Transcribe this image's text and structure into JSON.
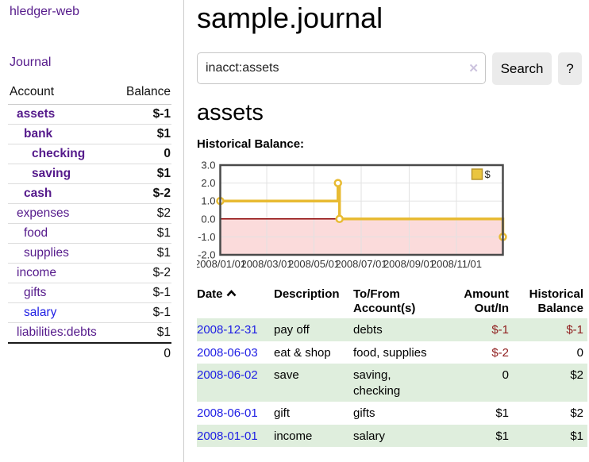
{
  "app": {
    "title": "hledger-web"
  },
  "sidebar": {
    "journal_label": "Journal",
    "accounts": {
      "header_account": "Account",
      "header_balance": "Balance",
      "rows": [
        {
          "name": "assets",
          "balance": "$-1",
          "indent": 1,
          "bold": true,
          "balance_style": "negative"
        },
        {
          "name": "bank",
          "balance": "$1",
          "indent": 2,
          "bold": true,
          "balance_style": "positive"
        },
        {
          "name": "checking",
          "balance": "0",
          "indent": 3,
          "bold": true,
          "balance_style": "positive"
        },
        {
          "name": "saving",
          "balance": "$1",
          "indent": 3,
          "bold": true,
          "balance_style": "positive"
        },
        {
          "name": "cash",
          "balance": "$-2",
          "indent": 2,
          "bold": true,
          "balance_style": "negative"
        },
        {
          "name": "expenses",
          "balance": "$2",
          "indent": 1,
          "bold": false,
          "balance_style": "positive"
        },
        {
          "name": "food",
          "balance": "$1",
          "indent": 2,
          "bold": false,
          "balance_style": "positive"
        },
        {
          "name": "supplies",
          "balance": "$1",
          "indent": 2,
          "bold": false,
          "balance_style": "positive"
        },
        {
          "name": "income",
          "balance": "$-2",
          "indent": 1,
          "bold": false,
          "balance_style": "negative-muted"
        },
        {
          "name": "gifts",
          "balance": "$-1",
          "indent": 2,
          "bold": false,
          "balance_style": "negative-muted"
        },
        {
          "name": "salary",
          "balance": "$-1",
          "indent": 2,
          "bold": false,
          "balance_style": "negative-muted",
          "link_style": "unvisited"
        },
        {
          "name": "liabilities:debts",
          "balance": "$1",
          "indent": 1,
          "bold": false,
          "balance_style": "positive"
        }
      ],
      "total": "0"
    }
  },
  "main": {
    "title": "sample.journal",
    "search": {
      "query": "inacct:assets",
      "clear_icon": "✕",
      "button_label": "Search",
      "help_label": "?"
    },
    "account_heading": "assets",
    "register": {
      "headers": {
        "date": "Date",
        "description": "Description",
        "accounts": "To/From Account(s)",
        "amount": "Amount Out/In",
        "balance": "Historical Balance"
      },
      "sort": "date-ascending",
      "rows": [
        {
          "date": "2008-12-31",
          "description": "pay off",
          "accounts": "debts",
          "amount": "$-1",
          "amount_negative": true,
          "balance": "$-1",
          "balance_negative": true
        },
        {
          "date": "2008-06-03",
          "description": "eat & shop",
          "accounts": "food, supplies",
          "amount": "$-2",
          "amount_negative": true,
          "balance": "0",
          "balance_negative": false
        },
        {
          "date": "2008-06-02",
          "description": "save",
          "accounts": "saving, checking",
          "amount": "0",
          "amount_negative": false,
          "balance": "$2",
          "balance_negative": false
        },
        {
          "date": "2008-06-01",
          "description": "gift",
          "accounts": "gifts",
          "amount": "$1",
          "amount_negative": false,
          "balance": "$2",
          "balance_negative": false
        },
        {
          "date": "2008-01-01",
          "description": "income",
          "accounts": "salary",
          "amount": "$1",
          "amount_negative": false,
          "balance": "$1",
          "balance_negative": false
        }
      ]
    }
  },
  "chart_data": {
    "type": "line",
    "step": true,
    "title": "Historical Balance:",
    "series": [
      {
        "name": "$",
        "points": [
          [
            "2008-01-01",
            1
          ],
          [
            "2008-06-01",
            2
          ],
          [
            "2008-06-03",
            0
          ],
          [
            "2008-12-31",
            -1
          ]
        ]
      }
    ],
    "x_range": [
      "2008-01-01",
      "2008-12-31"
    ],
    "ylim": [
      -2,
      3
    ],
    "y_ticks": [
      3,
      2,
      1,
      0,
      -1,
      -2
    ],
    "x_ticks": [
      {
        "label": "2008/01/01",
        "date": "2008-01-01"
      },
      {
        "label": "2008/03/01",
        "date": "2008-03-01"
      },
      {
        "label": "2008/05/01",
        "date": "2008-05-01"
      },
      {
        "label": "2008/07/01",
        "date": "2008-07-01"
      },
      {
        "label": "2008/09/01",
        "date": "2008-09-01"
      },
      {
        "label": "2008/11/01",
        "date": "2008-11-01"
      }
    ],
    "legend": {
      "label": "$",
      "position": "top-right"
    },
    "grid": true,
    "colors": {
      "line": "#e8bb33",
      "marker_fill": "#ffffff",
      "negative_fill": "#fbdbdb",
      "zero_line": "#8b0000",
      "grid": "#e2e2e2",
      "border": "#4a4a4a",
      "legend_fill": "#eac53f",
      "legend_border": "#b8952c"
    }
  },
  "colors": {
    "link_purple": "#551a8b",
    "link_blue": "#1e1ee4",
    "negative": "#8f1d1d",
    "negative_muted": "#c28989",
    "row_green": "#dfeedd",
    "button_gray": "#ebebeb",
    "clear_icon": "#ccc3de"
  }
}
